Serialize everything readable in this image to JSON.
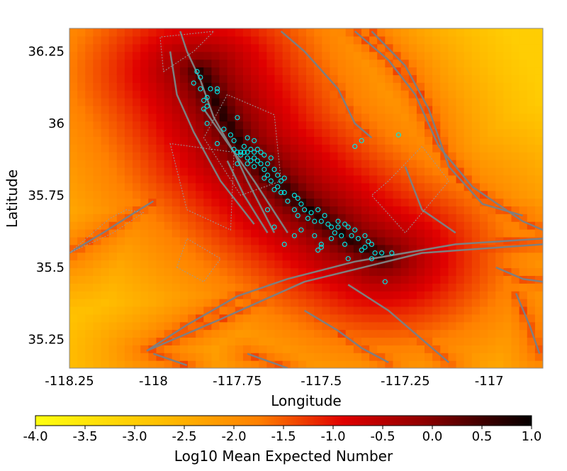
{
  "chart_data": {
    "type": "heatmap",
    "title": "",
    "xlabel": "Longitude",
    "ylabel": "Latitude",
    "xlim": [
      -118.25,
      -116.84
    ],
    "ylim": [
      35.15,
      36.33
    ],
    "x_ticks": [
      -118.25,
      -118.0,
      -117.75,
      -117.5,
      -117.25,
      -117.0
    ],
    "x_tick_labels": [
      "-118.25",
      "-118",
      "-117.75",
      "-117.5",
      "-117.25",
      "-117"
    ],
    "y_ticks": [
      35.25,
      35.5,
      35.75,
      36.0,
      36.25
    ],
    "y_tick_labels": [
      "35.25",
      "35.5",
      "35.75",
      "36",
      "36.25"
    ],
    "colorbar": {
      "label": "Log10 Mean Expected Number",
      "range": [
        -4.0,
        1.0
      ],
      "ticks": [
        -4.0,
        -3.5,
        -3.0,
        -2.5,
        -2.0,
        -1.5,
        -1.0,
        -0.5,
        0.0,
        0.5,
        1.0
      ],
      "tick_labels": [
        "-4.0",
        "-3.5",
        "-3.0",
        "-2.5",
        "-2.0",
        "-1.5",
        "-1.0",
        "-0.5",
        "0.0",
        "0.5",
        "1.0"
      ],
      "colormap": "hot (yellow to black)"
    },
    "grid": false,
    "event_color": "#00e5e5",
    "fault_color": "#7f7f7f",
    "events": [
      {
        "lon": -117.87,
        "lat": 36.18
      },
      {
        "lon": -117.86,
        "lat": 36.16
      },
      {
        "lon": -117.88,
        "lat": 36.14
      },
      {
        "lon": -117.86,
        "lat": 36.12
      },
      {
        "lon": -117.83,
        "lat": 36.12
      },
      {
        "lon": -117.81,
        "lat": 36.11
      },
      {
        "lon": -117.81,
        "lat": 36.12
      },
      {
        "lon": -117.84,
        "lat": 36.09
      },
      {
        "lon": -117.85,
        "lat": 36.08
      },
      {
        "lon": -117.84,
        "lat": 36.06
      },
      {
        "lon": -117.85,
        "lat": 36.05
      },
      {
        "lon": -117.75,
        "lat": 36.02
      },
      {
        "lon": -117.84,
        "lat": 36.0
      },
      {
        "lon": -117.79,
        "lat": 35.98
      },
      {
        "lon": -117.77,
        "lat": 35.96
      },
      {
        "lon": -117.81,
        "lat": 35.93
      },
      {
        "lon": -117.76,
        "lat": 35.94
      },
      {
        "lon": -117.72,
        "lat": 35.95
      },
      {
        "lon": -117.7,
        "lat": 35.94
      },
      {
        "lon": -117.73,
        "lat": 35.92
      },
      {
        "lon": -117.76,
        "lat": 35.91
      },
      {
        "lon": -117.75,
        "lat": 35.9
      },
      {
        "lon": -117.74,
        "lat": 35.9
      },
      {
        "lon": -117.73,
        "lat": 35.9
      },
      {
        "lon": -117.72,
        "lat": 35.9
      },
      {
        "lon": -117.71,
        "lat": 35.91
      },
      {
        "lon": -117.7,
        "lat": 35.9
      },
      {
        "lon": -117.69,
        "lat": 35.91
      },
      {
        "lon": -117.68,
        "lat": 35.9
      },
      {
        "lon": -117.67,
        "lat": 35.89
      },
      {
        "lon": -117.74,
        "lat": 35.89
      },
      {
        "lon": -117.72,
        "lat": 35.88
      },
      {
        "lon": -117.7,
        "lat": 35.88
      },
      {
        "lon": -117.71,
        "lat": 35.87
      },
      {
        "lon": -117.69,
        "lat": 35.87
      },
      {
        "lon": -117.72,
        "lat": 35.86
      },
      {
        "lon": -117.68,
        "lat": 35.86
      },
      {
        "lon": -117.66,
        "lat": 35.86
      },
      {
        "lon": -117.65,
        "lat": 35.88
      },
      {
        "lon": -117.75,
        "lat": 35.86
      },
      {
        "lon": -117.7,
        "lat": 35.85
      },
      {
        "lon": -117.67,
        "lat": 35.84
      },
      {
        "lon": -117.64,
        "lat": 35.84
      },
      {
        "lon": -117.66,
        "lat": 35.82
      },
      {
        "lon": -117.63,
        "lat": 35.82
      },
      {
        "lon": -117.67,
        "lat": 35.81
      },
      {
        "lon": -117.65,
        "lat": 35.8
      },
      {
        "lon": -117.62,
        "lat": 35.8
      },
      {
        "lon": -117.61,
        "lat": 35.81
      },
      {
        "lon": -117.63,
        "lat": 35.78
      },
      {
        "lon": -117.64,
        "lat": 35.77
      },
      {
        "lon": -117.62,
        "lat": 35.76
      },
      {
        "lon": -117.61,
        "lat": 35.76
      },
      {
        "lon": -117.58,
        "lat": 35.75
      },
      {
        "lon": -117.57,
        "lat": 35.74
      },
      {
        "lon": -117.6,
        "lat": 35.73
      },
      {
        "lon": -117.56,
        "lat": 35.72
      },
      {
        "lon": -117.58,
        "lat": 35.7
      },
      {
        "lon": -117.55,
        "lat": 35.7
      },
      {
        "lon": -117.53,
        "lat": 35.69
      },
      {
        "lon": -117.57,
        "lat": 35.68
      },
      {
        "lon": -117.54,
        "lat": 35.67
      },
      {
        "lon": -117.52,
        "lat": 35.66
      },
      {
        "lon": -117.5,
        "lat": 35.66
      },
      {
        "lon": -117.49,
        "lat": 35.68
      },
      {
        "lon": -117.51,
        "lat": 35.7
      },
      {
        "lon": -117.48,
        "lat": 35.65
      },
      {
        "lon": -117.47,
        "lat": 35.64
      },
      {
        "lon": -117.45,
        "lat": 35.64
      },
      {
        "lon": -117.43,
        "lat": 35.65
      },
      {
        "lon": -117.42,
        "lat": 35.64
      },
      {
        "lon": -117.4,
        "lat": 35.63
      },
      {
        "lon": -117.46,
        "lat": 35.62
      },
      {
        "lon": -117.44,
        "lat": 35.61
      },
      {
        "lon": -117.41,
        "lat": 35.61
      },
      {
        "lon": -117.39,
        "lat": 35.6
      },
      {
        "lon": -117.37,
        "lat": 35.61
      },
      {
        "lon": -117.36,
        "lat": 35.59
      },
      {
        "lon": -117.37,
        "lat": 35.57
      },
      {
        "lon": -117.35,
        "lat": 35.58
      },
      {
        "lon": -117.38,
        "lat": 35.56
      },
      {
        "lon": -117.34,
        "lat": 35.55
      },
      {
        "lon": -117.32,
        "lat": 35.55
      },
      {
        "lon": -117.43,
        "lat": 35.58
      },
      {
        "lon": -117.47,
        "lat": 35.6
      },
      {
        "lon": -117.52,
        "lat": 35.61
      },
      {
        "lon": -117.56,
        "lat": 35.63
      },
      {
        "lon": -117.58,
        "lat": 35.61
      },
      {
        "lon": -117.61,
        "lat": 35.58
      },
      {
        "lon": -117.5,
        "lat": 35.58
      },
      {
        "lon": -117.51,
        "lat": 35.56
      },
      {
        "lon": -117.5,
        "lat": 35.57
      },
      {
        "lon": -117.42,
        "lat": 35.53
      },
      {
        "lon": -117.35,
        "lat": 35.53
      },
      {
        "lon": -117.29,
        "lat": 35.55
      },
      {
        "lon": -117.4,
        "lat": 35.92
      },
      {
        "lon": -117.38,
        "lat": 35.94
      },
      {
        "lon": -117.27,
        "lat": 35.96
      },
      {
        "lon": -117.31,
        "lat": 35.45
      },
      {
        "lon": -117.66,
        "lat": 35.7
      },
      {
        "lon": -117.64,
        "lat": 35.64
      },
      {
        "lon": -117.45,
        "lat": 35.66
      }
    ],
    "faults": [
      [
        [
          -118.25,
          35.55
        ],
        [
          -118.15,
          35.62
        ],
        [
          -118.07,
          35.68
        ],
        [
          -118.0,
          35.73
        ]
      ],
      [
        [
          -118.02,
          35.21
        ],
        [
          -117.9,
          35.3
        ],
        [
          -117.75,
          35.4
        ],
        [
          -117.6,
          35.46
        ],
        [
          -117.4,
          35.52
        ],
        [
          -117.1,
          35.58
        ],
        [
          -116.84,
          35.6
        ]
      ],
      [
        [
          -118.02,
          35.21
        ],
        [
          -117.8,
          35.32
        ],
        [
          -117.55,
          35.45
        ],
        [
          -117.2,
          35.55
        ],
        [
          -116.84,
          35.58
        ]
      ],
      [
        [
          -118.0,
          35.2
        ],
        [
          -117.9,
          35.16
        ]
      ],
      [
        [
          -117.92,
          36.32
        ],
        [
          -117.9,
          36.25
        ],
        [
          -117.86,
          36.15
        ],
        [
          -117.82,
          36.02
        ],
        [
          -117.76,
          35.9
        ],
        [
          -117.72,
          35.8
        ],
        [
          -117.64,
          35.62
        ]
      ],
      [
        [
          -117.85,
          36.05
        ],
        [
          -117.7,
          35.8
        ],
        [
          -117.6,
          35.62
        ]
      ],
      [
        [
          -117.78,
          35.87
        ],
        [
          -117.73,
          35.75
        ],
        [
          -117.66,
          35.62
        ]
      ],
      [
        [
          -117.95,
          36.25
        ],
        [
          -117.93,
          36.1
        ],
        [
          -117.88,
          35.97
        ],
        [
          -117.8,
          35.8
        ],
        [
          -117.7,
          35.65
        ]
      ],
      [
        [
          -117.62,
          36.32
        ],
        [
          -117.55,
          36.25
        ],
        [
          -117.45,
          36.12
        ],
        [
          -117.4,
          36.0
        ],
        [
          -117.35,
          35.95
        ]
      ],
      [
        [
          -117.4,
          36.32
        ],
        [
          -117.3,
          36.22
        ],
        [
          -117.22,
          36.1
        ],
        [
          -117.15,
          35.92
        ],
        [
          -117.05,
          35.78
        ],
        [
          -116.9,
          35.66
        ],
        [
          -116.84,
          35.63
        ]
      ],
      [
        [
          -117.35,
          36.32
        ],
        [
          -117.25,
          36.2
        ],
        [
          -117.18,
          36.05
        ],
        [
          -117.12,
          35.85
        ],
        [
          -117.02,
          35.72
        ],
        [
          -116.9,
          35.68
        ]
      ],
      [
        [
          -117.25,
          35.85
        ],
        [
          -117.2,
          35.7
        ],
        [
          -117.1,
          35.62
        ]
      ],
      [
        [
          -117.42,
          35.44
        ],
        [
          -117.3,
          35.35
        ],
        [
          -117.2,
          35.25
        ],
        [
          -117.12,
          35.17
        ]
      ],
      [
        [
          -117.55,
          35.35
        ],
        [
          -117.45,
          35.28
        ],
        [
          -117.38,
          35.22
        ],
        [
          -117.3,
          35.17
        ]
      ],
      [
        [
          -117.72,
          35.2
        ],
        [
          -117.6,
          35.15
        ]
      ],
      [
        [
          -116.92,
          35.41
        ],
        [
          -116.88,
          35.3
        ],
        [
          -116.85,
          35.2
        ]
      ],
      [
        [
          -116.98,
          35.5
        ],
        [
          -116.9,
          35.46
        ],
        [
          -116.84,
          35.45
        ]
      ]
    ],
    "boxes": [
      [
        [
          -117.78,
          36.1
        ],
        [
          -117.85,
          35.95
        ],
        [
          -117.74,
          35.75
        ],
        [
          -117.62,
          35.8
        ],
        [
          -117.64,
          36.03
        ]
      ],
      [
        [
          -117.95,
          35.93
        ],
        [
          -117.9,
          35.7
        ],
        [
          -117.77,
          35.63
        ],
        [
          -117.76,
          35.9
        ]
      ],
      [
        [
          -117.2,
          35.92
        ],
        [
          -117.3,
          35.8
        ],
        [
          -117.35,
          35.75
        ],
        [
          -117.25,
          35.62
        ],
        [
          -117.12,
          35.8
        ]
      ],
      [
        [
          -117.97,
          36.18
        ],
        [
          -117.88,
          36.25
        ],
        [
          -117.82,
          36.32
        ],
        [
          -117.98,
          36.3
        ]
      ],
      [
        [
          -118.25,
          35.55
        ],
        [
          -118.2,
          35.6
        ],
        [
          -118.13,
          35.67
        ],
        [
          -118.08,
          35.7
        ],
        [
          -118.03,
          35.69
        ],
        [
          -118.12,
          35.62
        ]
      ],
      [
        [
          -117.93,
          35.5
        ],
        [
          -117.85,
          35.45
        ],
        [
          -117.8,
          35.53
        ],
        [
          -117.9,
          35.6
        ]
      ]
    ]
  }
}
